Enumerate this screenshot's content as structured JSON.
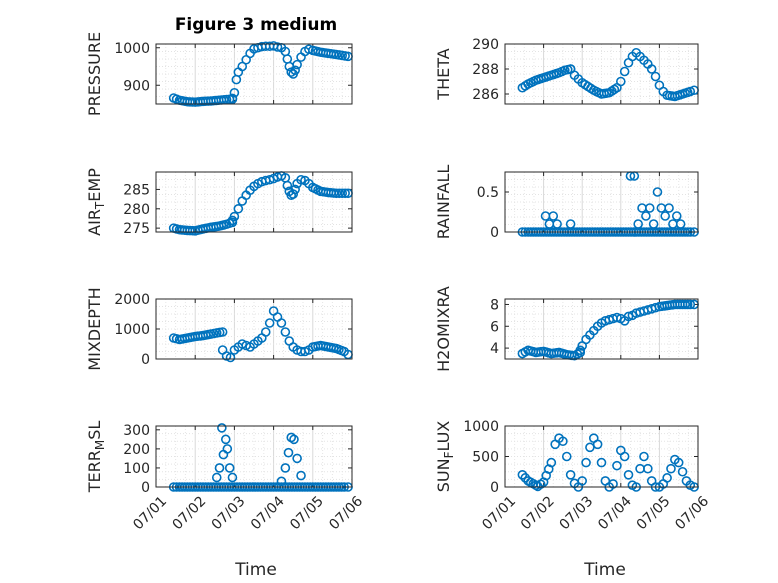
{
  "figure": {
    "title": "Figure 3 medium",
    "x_axis_label": "Time",
    "marker_color": "#0072BD"
  },
  "chart_data": [
    {
      "type": "scatter",
      "ylabel": "PRESSURE",
      "title": "Figure 3 medium",
      "xlim": [
        "07/01",
        "07/06"
      ],
      "ylim": [
        850,
        1010
      ],
      "yticks": [
        "900",
        "1000"
      ],
      "grid": true,
      "segments": [
        {
          "x": [
            1.45,
            1.6,
            1.8,
            2.0,
            2.2,
            2.4,
            2.6,
            2.8,
            2.95
          ],
          "y": [
            866,
            860,
            856,
            855,
            857,
            858,
            860,
            862,
            863
          ]
        },
        {
          "x": [
            2.95,
            3.0,
            3.05,
            3.1,
            3.2,
            3.3,
            3.4,
            3.5,
            3.6,
            3.7,
            3.8,
            3.9,
            4.0,
            4.1,
            4.2,
            4.3,
            4.35,
            4.4,
            4.45,
            4.5,
            4.55,
            4.6,
            4.7,
            4.8,
            4.9,
            5.0,
            5.2,
            5.4,
            5.6,
            5.9
          ],
          "y": [
            865,
            880,
            915,
            935,
            950,
            968,
            985,
            997,
            1000,
            1003,
            1004,
            1004,
            1005,
            1002,
            1000,
            990,
            970,
            950,
            935,
            930,
            940,
            955,
            975,
            990,
            996,
            993,
            988,
            985,
            982,
            977
          ]
        }
      ]
    },
    {
      "type": "scatter",
      "ylabel": "THETA",
      "xlim": [
        "07/01",
        "07/06"
      ],
      "ylim": [
        285.2,
        290.0
      ],
      "yticks": [
        "286",
        "288",
        "290"
      ],
      "grid": true,
      "segments": [
        {
          "x": [
            1.45,
            1.6,
            1.8,
            2.0,
            2.2,
            2.4,
            2.55,
            2.7
          ],
          "y": [
            286.5,
            286.8,
            287.1,
            287.3,
            287.5,
            287.7,
            287.9,
            288.0
          ]
        },
        {
          "x": [
            2.7,
            2.8,
            2.9,
            3.0,
            3.15,
            3.3,
            3.5,
            3.7,
            3.9,
            4.0,
            4.1,
            4.2,
            4.3,
            4.4,
            4.5,
            4.6,
            4.7,
            4.8,
            4.9,
            5.0,
            5.1,
            5.2,
            5.4,
            5.6,
            5.8,
            5.9
          ],
          "y": [
            288.0,
            287.5,
            287.2,
            286.9,
            286.6,
            286.3,
            286.0,
            286.1,
            286.5,
            287.0,
            287.8,
            288.5,
            289.0,
            289.3,
            289.0,
            288.7,
            288.4,
            288.0,
            287.4,
            286.7,
            286.2,
            285.9,
            285.8,
            286.0,
            286.2,
            286.3
          ]
        }
      ]
    },
    {
      "type": "scatter",
      "ylabel": "AIR_TEMP",
      "xlim": [
        "07/01",
        "07/06"
      ],
      "ylim": [
        274,
        289.5
      ],
      "yticks": [
        "275",
        "280",
        "285"
      ],
      "grid": true,
      "segments": [
        {
          "x": [
            1.45,
            1.6,
            1.8,
            2.0,
            2.2,
            2.4,
            2.6,
            2.8,
            2.95
          ],
          "y": [
            275.0,
            274.6,
            274.4,
            274.3,
            274.8,
            275.2,
            275.5,
            276.0,
            276.5
          ]
        },
        {
          "x": [
            2.95,
            3.0,
            3.1,
            3.2,
            3.3,
            3.4,
            3.5,
            3.6,
            3.7,
            3.8,
            3.9,
            4.0,
            4.1,
            4.2,
            4.3,
            4.35,
            4.4,
            4.45,
            4.5,
            4.55,
            4.6,
            4.7,
            4.8,
            4.9,
            5.0,
            5.2,
            5.4,
            5.6,
            5.9
          ],
          "y": [
            277.0,
            278.0,
            280.0,
            282.0,
            283.5,
            284.8,
            285.8,
            286.5,
            287.0,
            287.3,
            287.5,
            287.8,
            288.2,
            288.5,
            288.0,
            286.0,
            284.5,
            283.5,
            283.8,
            285.0,
            286.5,
            287.5,
            287.3,
            286.5,
            285.5,
            284.5,
            284.2,
            284.0,
            284.0
          ]
        }
      ]
    },
    {
      "type": "scatter",
      "ylabel": "RAINFALL",
      "xlim": [
        "07/01",
        "07/06"
      ],
      "ylim": [
        0,
        0.75
      ],
      "yticks": [
        "0",
        "0.5"
      ],
      "grid": true,
      "segments": [
        {
          "x": [
            1.45,
            1.6,
            1.8,
            2.0,
            2.2,
            2.4,
            2.6,
            2.8,
            3.0,
            3.2,
            3.4,
            3.6,
            3.8,
            4.0,
            4.2,
            4.4,
            4.6,
            4.8,
            5.0,
            5.2,
            5.4,
            5.6,
            5.8,
            5.9
          ],
          "y": [
            0,
            0,
            0,
            0,
            0,
            0,
            0,
            0,
            0,
            0,
            0,
            0,
            0,
            0,
            0,
            0,
            0,
            0,
            0,
            0,
            0,
            0,
            0,
            0
          ]
        }
      ],
      "spikes": [
        {
          "x": 2.05,
          "y": 0.2
        },
        {
          "x": 2.15,
          "y": 0.1
        },
        {
          "x": 2.25,
          "y": 0.2
        },
        {
          "x": 2.35,
          "y": 0.1
        },
        {
          "x": 2.7,
          "y": 0.1
        },
        {
          "x": 4.25,
          "y": 0.7
        },
        {
          "x": 4.35,
          "y": 0.7
        },
        {
          "x": 4.45,
          "y": 0.1
        },
        {
          "x": 4.55,
          "y": 0.3
        },
        {
          "x": 4.65,
          "y": 0.2
        },
        {
          "x": 4.75,
          "y": 0.3
        },
        {
          "x": 4.85,
          "y": 0.1
        },
        {
          "x": 4.95,
          "y": 0.5
        },
        {
          "x": 5.05,
          "y": 0.3
        },
        {
          "x": 5.15,
          "y": 0.2
        },
        {
          "x": 5.25,
          "y": 0.3
        },
        {
          "x": 5.35,
          "y": 0.1
        },
        {
          "x": 5.45,
          "y": 0.2
        },
        {
          "x": 5.55,
          "y": 0.1
        }
      ]
    },
    {
      "type": "scatter",
      "ylabel": "MIXDEPTH",
      "xlim": [
        "07/01",
        "07/06"
      ],
      "ylim": [
        0,
        2000
      ],
      "yticks": [
        "0",
        "1000",
        "2000"
      ],
      "grid": true,
      "segments": [
        {
          "x": [
            1.45,
            1.6,
            1.8,
            2.0,
            2.2,
            2.4,
            2.55,
            2.7
          ],
          "y": [
            700,
            650,
            700,
            750,
            780,
            830,
            870,
            900
          ]
        },
        {
          "x": [
            2.7,
            2.8,
            2.9,
            3.0,
            3.1,
            3.2,
            3.3,
            3.4,
            3.5,
            3.6,
            3.7,
            3.8,
            3.9,
            4.0,
            4.1,
            4.2,
            4.3,
            4.4,
            4.5,
            4.6,
            4.7,
            4.8,
            4.9,
            5.0,
            5.2,
            5.4,
            5.6,
            5.8,
            5.9
          ],
          "y": [
            300,
            100,
            50,
            300,
            400,
            500,
            450,
            400,
            500,
            600,
            700,
            900,
            1200,
            1600,
            1400,
            1200,
            900,
            600,
            400,
            300,
            250,
            250,
            300,
            400,
            450,
            400,
            350,
            250,
            150
          ]
        }
      ]
    },
    {
      "type": "scatter",
      "ylabel": "H2OMIXRA",
      "xlim": [
        "07/01",
        "07/06"
      ],
      "ylim": [
        3,
        8.5
      ],
      "yticks": [
        "4",
        "6",
        "8"
      ],
      "grid": true,
      "segments": [
        {
          "x": [
            1.45,
            1.6,
            1.8,
            2.0,
            2.2,
            2.4,
            2.6,
            2.8,
            2.95
          ],
          "y": [
            3.5,
            3.8,
            3.6,
            3.7,
            3.5,
            3.6,
            3.4,
            3.3,
            3.6
          ]
        },
        {
          "x": [
            2.95,
            3.0,
            3.1,
            3.2,
            3.3,
            3.4,
            3.5,
            3.6,
            3.7,
            3.8,
            3.9,
            4.0,
            4.1,
            4.2,
            4.3,
            4.4,
            4.5,
            4.6,
            4.7,
            4.8,
            4.9,
            5.0,
            5.2,
            5.4,
            5.6,
            5.8,
            5.9
          ],
          "y": [
            3.8,
            4.2,
            4.8,
            5.2,
            5.6,
            6.0,
            6.3,
            6.5,
            6.6,
            6.7,
            6.8,
            6.7,
            6.5,
            6.9,
            7.0,
            7.2,
            7.3,
            7.4,
            7.5,
            7.6,
            7.7,
            7.8,
            7.9,
            8.0,
            8.0,
            8.0,
            8.0
          ]
        }
      ]
    },
    {
      "type": "scatter",
      "ylabel": "TERR_MSL",
      "xlim": [
        "07/01",
        "07/06"
      ],
      "ylim": [
        0,
        320
      ],
      "yticks": [
        "0",
        "100",
        "200",
        "300"
      ],
      "grid": true,
      "xticks": [
        "07/01",
        "07/02",
        "07/03",
        "07/04",
        "07/05",
        "07/06"
      ],
      "xlabel": "Time",
      "segments": [
        {
          "x": [
            1.45,
            1.6,
            1.8,
            2.0,
            2.2,
            2.4,
            2.6,
            2.8,
            3.0,
            3.2,
            3.4,
            3.6,
            3.8,
            4.0,
            4.2,
            4.4,
            4.6,
            4.8,
            5.0,
            5.2,
            5.4,
            5.6,
            5.8,
            5.9
          ],
          "y": [
            0,
            0,
            0,
            0,
            0,
            0,
            0,
            0,
            0,
            0,
            0,
            0,
            0,
            0,
            0,
            0,
            0,
            0,
            0,
            0,
            0,
            0,
            0,
            0
          ]
        }
      ],
      "spikes": [
        {
          "x": 2.55,
          "y": 50
        },
        {
          "x": 2.62,
          "y": 100
        },
        {
          "x": 2.68,
          "y": 310
        },
        {
          "x": 2.72,
          "y": 170
        },
        {
          "x": 2.78,
          "y": 250
        },
        {
          "x": 2.82,
          "y": 200
        },
        {
          "x": 2.88,
          "y": 100
        },
        {
          "x": 2.95,
          "y": 50
        },
        {
          "x": 4.2,
          "y": 30
        },
        {
          "x": 4.3,
          "y": 100
        },
        {
          "x": 4.38,
          "y": 180
        },
        {
          "x": 4.45,
          "y": 260
        },
        {
          "x": 4.52,
          "y": 250
        },
        {
          "x": 4.6,
          "y": 150
        },
        {
          "x": 4.7,
          "y": 60
        }
      ]
    },
    {
      "type": "scatter",
      "ylabel": "SUN_FLUX",
      "xlim": [
        "07/01",
        "07/06"
      ],
      "ylim": [
        0,
        1000
      ],
      "yticks": [
        "0",
        "500",
        "1000"
      ],
      "grid": true,
      "xticks": [
        "07/01",
        "07/02",
        "07/03",
        "07/04",
        "07/05",
        "07/06"
      ],
      "xlabel": "Time",
      "segments": [
        {
          "x": [
            1.45,
            1.6,
            1.8,
            1.85,
            2.0,
            2.2,
            2.3,
            2.4,
            2.5,
            2.6,
            2.7,
            2.8,
            2.9,
            3.0,
            3.1,
            3.2,
            3.3,
            3.4,
            3.5,
            3.6,
            3.7,
            3.8,
            3.9,
            4.0,
            4.1,
            4.2,
            4.3,
            4.4,
            4.5,
            4.6,
            4.7,
            4.8,
            4.9,
            5.0,
            5.1,
            5.2,
            5.3,
            5.4,
            5.5,
            5.6,
            5.7,
            5.8,
            5.9
          ],
          "y": [
            200,
            100,
            30,
            10,
            80,
            400,
            700,
            800,
            750,
            500,
            200,
            60,
            0,
            100,
            400,
            650,
            800,
            700,
            400,
            100,
            0,
            50,
            350,
            600,
            500,
            200,
            30,
            0,
            300,
            500,
            300,
            100,
            0,
            0,
            50,
            150,
            300,
            450,
            400,
            250,
            100,
            30,
            0
          ]
        }
      ]
    }
  ]
}
